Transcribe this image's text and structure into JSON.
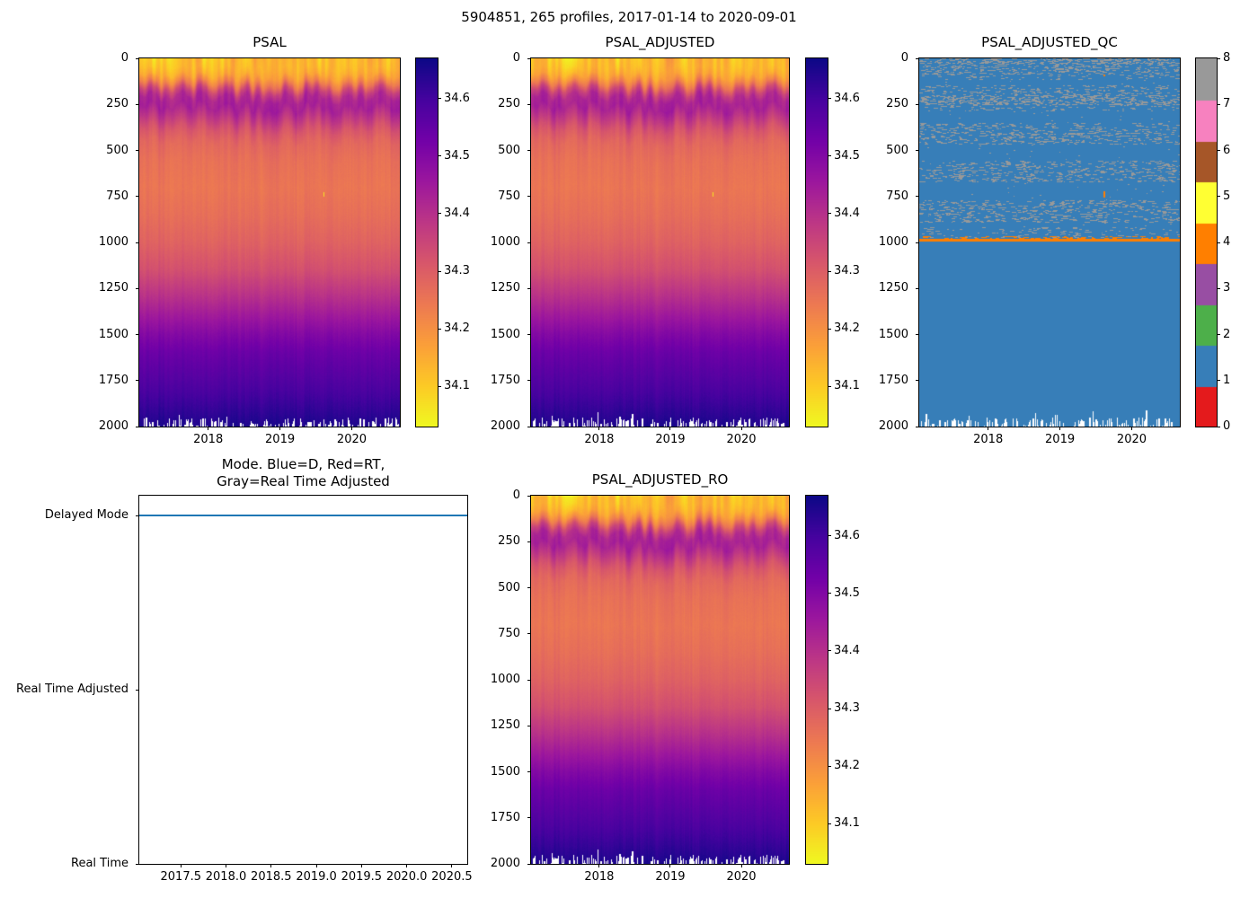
{
  "figure": {
    "title": "5904851, 265 profiles, 2017-01-14 to 2020-09-01",
    "background": "#ffffff",
    "float_id": "5904851",
    "n_profiles": 265,
    "date_start": "2017-01-14",
    "date_end": "2020-09-01"
  },
  "chart_data": [
    {
      "type": "heatmap",
      "id": "psal",
      "title": "PSAL",
      "x_range": [
        2017.04,
        2020.67
      ],
      "x_tick_labels": [
        "2018",
        "2019",
        "2020"
      ],
      "y_range": [
        0,
        2000
      ],
      "y_axis_inverted": true,
      "y_tick_labels": [
        "0",
        "250",
        "500",
        "750",
        "1000",
        "1250",
        "1500",
        "1750",
        "2000"
      ],
      "colormap": "plasma_reversed",
      "value_range": [
        34.03,
        34.67
      ],
      "colorbar_tick_labels": [
        "34.1",
        "34.2",
        "34.3",
        "34.4",
        "34.5",
        "34.6"
      ],
      "depth_salinity_profile": [
        [
          0,
          34.115
        ],
        [
          50,
          34.125
        ],
        [
          90,
          34.155
        ],
        [
          130,
          34.23
        ],
        [
          170,
          34.35
        ],
        [
          210,
          34.42
        ],
        [
          260,
          34.435
        ],
        [
          310,
          34.39
        ],
        [
          380,
          34.32
        ],
        [
          450,
          34.28
        ],
        [
          550,
          34.26
        ],
        [
          700,
          34.25
        ],
        [
          850,
          34.265
        ],
        [
          1000,
          34.29
        ],
        [
          1150,
          34.33
        ],
        [
          1300,
          34.4
        ],
        [
          1400,
          34.45
        ],
        [
          1500,
          34.5
        ],
        [
          1600,
          34.54
        ],
        [
          1700,
          34.565
        ],
        [
          1800,
          34.59
        ],
        [
          1900,
          34.62
        ],
        [
          2000,
          34.65
        ]
      ],
      "anomaly": {
        "x": 2019.6,
        "depth_range": [
          725,
          750
        ],
        "value": 34.06
      },
      "seed": 42
    },
    {
      "type": "heatmap",
      "id": "psal_adjusted",
      "title": "PSAL_ADJUSTED",
      "x_range": [
        2017.04,
        2020.67
      ],
      "x_tick_labels": [
        "2018",
        "2019",
        "2020"
      ],
      "y_range": [
        0,
        2000
      ],
      "y_axis_inverted": true,
      "y_tick_labels": [
        "0",
        "250",
        "500",
        "750",
        "1000",
        "1250",
        "1500",
        "1750",
        "2000"
      ],
      "colormap": "plasma_reversed",
      "value_range": [
        34.03,
        34.67
      ],
      "colorbar_tick_labels": [
        "34.1",
        "34.2",
        "34.3",
        "34.4",
        "34.5",
        "34.6"
      ],
      "depth_salinity_profile": [
        [
          0,
          34.115
        ],
        [
          50,
          34.125
        ],
        [
          90,
          34.155
        ],
        [
          130,
          34.23
        ],
        [
          170,
          34.35
        ],
        [
          210,
          34.42
        ],
        [
          260,
          34.435
        ],
        [
          310,
          34.39
        ],
        [
          380,
          34.32
        ],
        [
          450,
          34.28
        ],
        [
          550,
          34.26
        ],
        [
          700,
          34.25
        ],
        [
          850,
          34.265
        ],
        [
          1000,
          34.29
        ],
        [
          1150,
          34.33
        ],
        [
          1300,
          34.4
        ],
        [
          1400,
          34.45
        ],
        [
          1500,
          34.5
        ],
        [
          1600,
          34.54
        ],
        [
          1700,
          34.565
        ],
        [
          1800,
          34.59
        ],
        [
          1900,
          34.62
        ],
        [
          2000,
          34.65
        ]
      ],
      "anomaly": {
        "x": 2019.6,
        "depth_range": [
          725,
          750
        ],
        "value": 34.06
      },
      "seed": 42
    },
    {
      "type": "heatmap",
      "id": "psal_adjusted_qc",
      "title": "PSAL_ADJUSTED_QC",
      "x_range": [
        2017.04,
        2020.67
      ],
      "x_tick_labels": [
        "2018",
        "2019",
        "2020"
      ],
      "y_range": [
        0,
        2000
      ],
      "y_axis_inverted": true,
      "y_tick_labels": [
        "0",
        "250",
        "500",
        "750",
        "1000",
        "1250",
        "1500",
        "1750",
        "2000"
      ],
      "value_range": [
        0,
        8
      ],
      "colorbar_tick_labels": [
        "0",
        "1",
        "2",
        "3",
        "4",
        "5",
        "6",
        "7",
        "8"
      ],
      "flag_colors": [
        "#e41a1c",
        "#377eb8",
        "#4daf4a",
        "#984ea3",
        "#ff7f00",
        "#ffff33",
        "#a65628",
        "#f781bf",
        "#999999"
      ],
      "background_flag": 1,
      "background_color": "#377eb8",
      "speckle_flag": 8,
      "speckle_color": "#999999",
      "speckle_bands": [
        [
          0,
          25,
          0.5
        ],
        [
          25,
          85,
          0.3
        ],
        [
          85,
          115,
          0.12
        ],
        [
          150,
          200,
          0.22
        ],
        [
          200,
          250,
          0.5
        ],
        [
          250,
          285,
          0.15
        ],
        [
          355,
          405,
          0.22
        ],
        [
          405,
          465,
          0.28
        ],
        [
          560,
          670,
          0.26
        ],
        [
          775,
          890,
          0.26
        ],
        [
          920,
          975,
          0.12
        ]
      ],
      "sparse_speckle": {
        "depth_range": [
          0,
          985
        ],
        "density": 0.014
      },
      "flag4_color": "#ff7f00",
      "flag4_line_depth": 985,
      "flag4_dash": {
        "x": 2019.6,
        "depth_range": [
          720,
          752
        ]
      },
      "flag4_dot": {
        "x": 2019.6,
        "depth": 88
      },
      "seed": 7
    },
    {
      "type": "line",
      "id": "mode",
      "title_lines": [
        "Mode. Blue=D, Red=RT,",
        "Gray=Real Time Adjusted"
      ],
      "x_range": [
        2017.04,
        2020.67
      ],
      "x_tick_labels": [
        "2017.5",
        "2018.0",
        "2018.5",
        "2019.0",
        "2019.5",
        "2020.0",
        "2020.5"
      ],
      "categories": [
        "Real Time",
        "Real Time Adjusted",
        "Delayed Mode"
      ],
      "series": [
        {
          "name": "mode",
          "constant_value": "Delayed Mode",
          "color": "#1f77b4"
        }
      ],
      "legend_note": {
        "D": "blue",
        "RT": "red",
        "Real Time Adjusted": "gray"
      }
    },
    {
      "type": "heatmap",
      "id": "psal_adjusted_ro",
      "title": "PSAL_ADJUSTED_RO",
      "x_range": [
        2017.04,
        2020.67
      ],
      "x_tick_labels": [
        "2018",
        "2019",
        "2020"
      ],
      "y_range": [
        0,
        2000
      ],
      "y_axis_inverted": true,
      "y_tick_labels": [
        "0",
        "250",
        "500",
        "750",
        "1000",
        "1250",
        "1500",
        "1750",
        "2000"
      ],
      "colormap": "plasma_reversed",
      "value_range": [
        34.03,
        34.67
      ],
      "colorbar_tick_labels": [
        "34.1",
        "34.2",
        "34.3",
        "34.4",
        "34.5",
        "34.6"
      ],
      "depth_salinity_profile": [
        [
          0,
          34.115
        ],
        [
          50,
          34.125
        ],
        [
          90,
          34.155
        ],
        [
          130,
          34.23
        ],
        [
          170,
          34.35
        ],
        [
          210,
          34.42
        ],
        [
          260,
          34.435
        ],
        [
          310,
          34.39
        ],
        [
          380,
          34.32
        ],
        [
          450,
          34.28
        ],
        [
          550,
          34.26
        ],
        [
          700,
          34.25
        ],
        [
          850,
          34.265
        ],
        [
          1000,
          34.29
        ],
        [
          1150,
          34.33
        ],
        [
          1300,
          34.4
        ],
        [
          1400,
          34.45
        ],
        [
          1500,
          34.5
        ],
        [
          1600,
          34.54
        ],
        [
          1700,
          34.565
        ],
        [
          1800,
          34.59
        ],
        [
          1900,
          34.62
        ],
        [
          2000,
          34.65
        ]
      ],
      "anomaly": null,
      "seed": 42
    }
  ]
}
